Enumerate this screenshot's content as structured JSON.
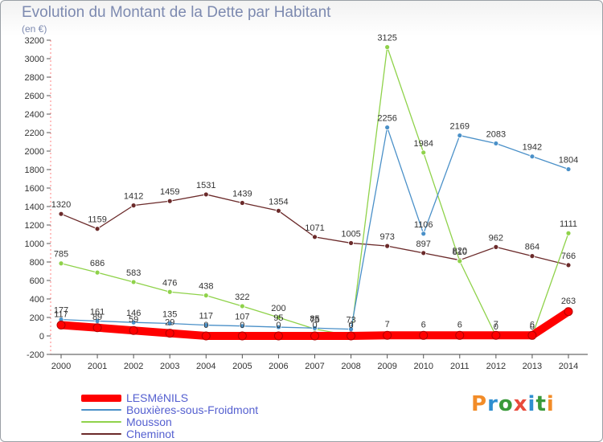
{
  "header": {
    "title": "Evolution du Montant de la Dette par Habitant",
    "subtitle": "(en €)"
  },
  "logo": {
    "text": "Proxiti"
  },
  "legend": [
    {
      "label": "LESMéNILS",
      "color": "#ff0000"
    },
    {
      "label": "Bouxières-sous-Froidmont",
      "color": "#4a90c8"
    },
    {
      "label": "Mousson",
      "color": "#8fd24a"
    },
    {
      "label": "Cheminot",
      "color": "#6b2a2a"
    }
  ],
  "chart_data": {
    "type": "line",
    "title": "Evolution du Montant de la Dette par Habitant",
    "subtitle": "(en €)",
    "categories": [
      "2000",
      "2001",
      "2002",
      "2003",
      "2004",
      "2005",
      "2006",
      "2007",
      "2008",
      "2009",
      "2010",
      "2011",
      "2012",
      "2013",
      "2014"
    ],
    "ylim": [
      -200,
      3200
    ],
    "yticks": [
      -200,
      0,
      200,
      400,
      600,
      800,
      1000,
      1200,
      1400,
      1600,
      1800,
      2000,
      2200,
      2400,
      2600,
      2800,
      3000,
      3200
    ],
    "grid": false,
    "legend_position": "bottom-left",
    "series": [
      {
        "name": "Cheminot",
        "color": "#6b2a2a",
        "values": [
          1320,
          1159,
          1412,
          1459,
          1531,
          1439,
          1354,
          1071,
          1005,
          973,
          897,
          820,
          962,
          864,
          766
        ],
        "labels": [
          "1320",
          "1159",
          "1412",
          "1459",
          "1531",
          "1439",
          "1354",
          "1071",
          "1005",
          "973",
          "897",
          "820",
          "962",
          "864",
          "766"
        ]
      },
      {
        "name": "Mousson",
        "color": "#8fd24a",
        "values": [
          785,
          686,
          583,
          476,
          438,
          322,
          200,
          75,
          3,
          3125,
          1984,
          810,
          0,
          0,
          1111
        ],
        "labels": [
          "785",
          "686",
          "583",
          "476",
          "438",
          "322",
          "200",
          "75",
          "3",
          "3125",
          "1984",
          "810",
          "0",
          "0",
          "1111"
        ]
      },
      {
        "name": "Bouxières-sous-Froidmont",
        "color": "#4a90c8",
        "values": [
          177,
          161,
          146,
          135,
          117,
          107,
          95,
          85,
          73,
          2256,
          1106,
          2169,
          2083,
          1942,
          1804
        ],
        "labels": [
          "177",
          "161",
          "146",
          "135",
          "117",
          "107",
          "95",
          "85",
          "73",
          "2256",
          "1106",
          "2169",
          "2083",
          "1942",
          "1804"
        ]
      },
      {
        "name": "LESMéNILS",
        "color": "#ff0000",
        "values": [
          117,
          89,
          59,
          29,
          0,
          0,
          0,
          0,
          0,
          7,
          6,
          6,
          7,
          6,
          263
        ],
        "labels": [
          "117",
          "89",
          "59",
          "29",
          "0",
          "0",
          "0",
          "0",
          "0",
          "7",
          "6",
          "6",
          "7",
          "6",
          "263"
        ]
      }
    ]
  }
}
